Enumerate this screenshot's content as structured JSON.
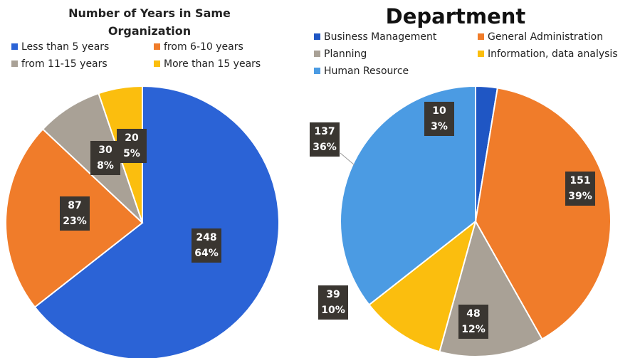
{
  "chart_data": [
    {
      "type": "pie",
      "title": "Number of Years in Same Organization",
      "categories": [
        "Less than 5 years",
        "from 6-10 years",
        "from 11-15 years",
        "More than 15 years"
      ],
      "values": [
        248,
        87,
        30,
        20
      ],
      "percent_labels": [
        "64%",
        "23%",
        "8%",
        "5%"
      ],
      "colors": [
        "#2b63d6",
        "#f07c2a",
        "#a9a196",
        "#fbbe0e"
      ]
    },
    {
      "type": "pie",
      "title": "Department",
      "categories": [
        "Business Management",
        "General Administration",
        "Planning",
        "Information, data analysis",
        "Human Resource"
      ],
      "values": [
        10,
        151,
        48,
        39,
        137
      ],
      "percent_labels": [
        "3%",
        "39%",
        "12%",
        "10%",
        "36%"
      ],
      "colors": [
        "#1f56c4",
        "#f07c2a",
        "#a9a196",
        "#fbbe0e",
        "#4b9be3"
      ]
    }
  ]
}
